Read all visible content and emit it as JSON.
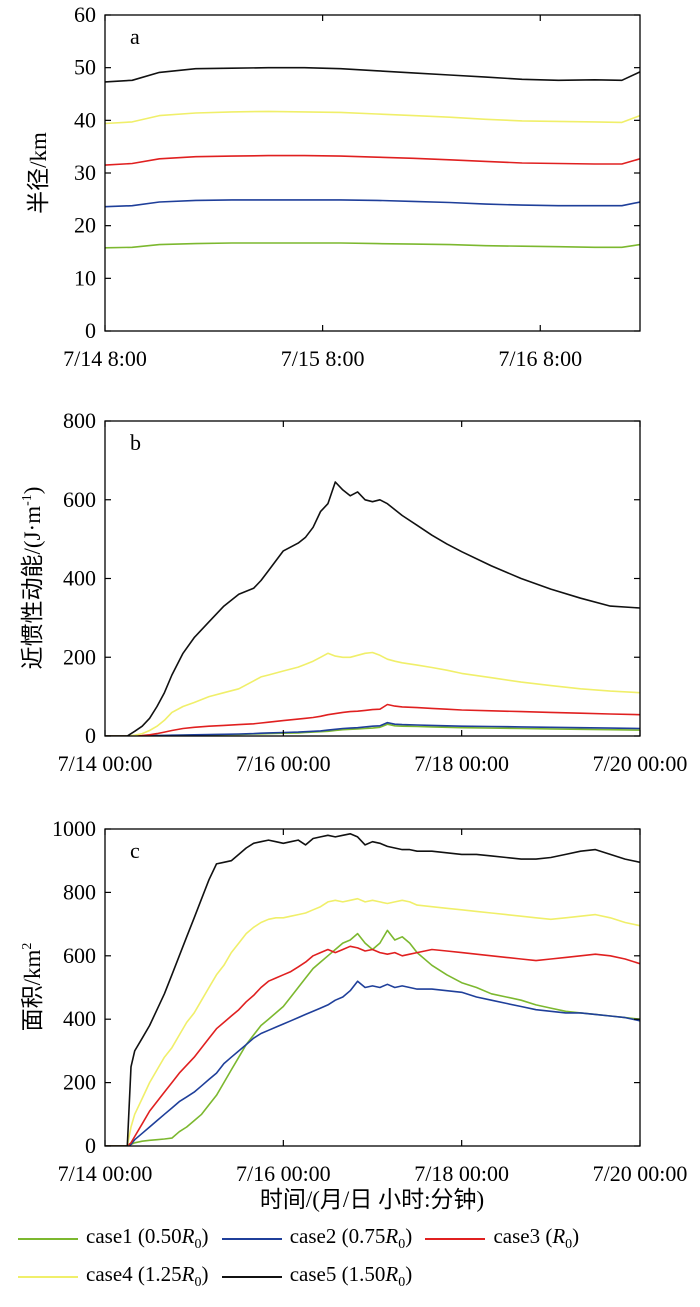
{
  "figure": {
    "xlabel": "时间/(月/日 小时:分钟)"
  },
  "legend": [
    {
      "label": "case1 (0.50R0)",
      "prefix": "case1 (0.50",
      "suffix": ")",
      "color": "#7cb82f"
    },
    {
      "label": "case2 (0.75R0)",
      "prefix": "case2 (0.75",
      "suffix": ")",
      "color": "#1f3f9a"
    },
    {
      "label": "case3 (R0)",
      "prefix": "case3 (",
      "suffix": ")",
      "color": "#e02020"
    },
    {
      "label": "case4 (1.25R0)",
      "prefix": "case4 (1.25",
      "suffix": ")",
      "color": "#f0ef6a"
    },
    {
      "label": "case5 (1.50R0)",
      "prefix": "case5 (1.50",
      "suffix": ")",
      "color": "#111111"
    }
  ],
  "chart_data": [
    {
      "panel": "a",
      "type": "line",
      "ylabel": "半径/km",
      "ylim": [
        0,
        60
      ],
      "yticks": [
        0,
        10,
        20,
        30,
        40,
        50,
        60
      ],
      "x_tick_labels": [
        "7/14 8:00",
        "7/15 8:00",
        "7/16 8:00"
      ],
      "x_tick_hours": [
        0,
        24,
        48
      ],
      "xlim_hours": [
        0,
        59
      ],
      "x": [
        0,
        3,
        6,
        10,
        14,
        18,
        22,
        26,
        30,
        34,
        38,
        42,
        46,
        50,
        54,
        57,
        59
      ],
      "series": [
        {
          "name": "case1 (0.50R0)",
          "color": "#7cb82f",
          "values": [
            15.8,
            15.9,
            16.4,
            16.6,
            16.7,
            16.7,
            16.7,
            16.7,
            16.6,
            16.5,
            16.4,
            16.2,
            16.1,
            16.0,
            15.9,
            15.9,
            16.4
          ]
        },
        {
          "name": "case2 (0.75R0)",
          "color": "#1f3f9a",
          "values": [
            23.6,
            23.8,
            24.5,
            24.8,
            24.9,
            24.9,
            24.9,
            24.9,
            24.8,
            24.6,
            24.4,
            24.1,
            23.9,
            23.8,
            23.8,
            23.8,
            24.5
          ]
        },
        {
          "name": "case3 (R0)",
          "color": "#e02020",
          "values": [
            31.5,
            31.8,
            32.7,
            33.1,
            33.2,
            33.3,
            33.3,
            33.2,
            33.0,
            32.8,
            32.5,
            32.2,
            31.9,
            31.8,
            31.7,
            31.7,
            32.7
          ]
        },
        {
          "name": "case4 (1.25R0)",
          "color": "#f0ef6a",
          "values": [
            39.4,
            39.7,
            40.9,
            41.4,
            41.6,
            41.7,
            41.6,
            41.5,
            41.2,
            40.9,
            40.6,
            40.2,
            39.9,
            39.8,
            39.7,
            39.6,
            40.9
          ]
        },
        {
          "name": "case5 (1.50R0)",
          "color": "#111111",
          "values": [
            47.3,
            47.6,
            49.1,
            49.8,
            49.9,
            50.0,
            50.0,
            49.8,
            49.4,
            49.0,
            48.6,
            48.2,
            47.8,
            47.6,
            47.7,
            47.6,
            49.2
          ]
        }
      ]
    },
    {
      "panel": "b",
      "type": "line",
      "ylabel": "近惯性动能/(J·m",
      "ylabel_sup": "-1",
      "ylabel_close": ")",
      "ylim": [
        0,
        800
      ],
      "yticks": [
        0,
        200,
        400,
        600,
        800
      ],
      "x_tick_labels": [
        "7/14 00:00",
        "7/16 00:00",
        "7/18 00:00",
        "7/20 00:00"
      ],
      "x_tick_hours": [
        0,
        48,
        96,
        144
      ],
      "xlim_hours": [
        0,
        144
      ],
      "x": [
        0,
        6,
        8,
        10,
        12,
        14,
        16,
        18,
        21,
        24,
        28,
        32,
        36,
        40,
        42,
        44,
        48,
        52,
        54,
        56,
        58,
        60,
        62,
        64,
        66,
        68,
        70,
        72,
        74,
        76,
        78,
        80,
        84,
        88,
        92,
        96,
        104,
        112,
        120,
        128,
        136,
        144
      ],
      "series": [
        {
          "name": "case1 (0.50R0)",
          "color": "#7cb82f",
          "values": [
            0,
            0,
            0,
            0.3,
            0.6,
            1,
            1.3,
            1.6,
            2,
            2.5,
            3,
            3.5,
            4,
            5,
            5.5,
            6,
            7,
            8,
            9,
            10,
            11,
            12,
            14,
            16,
            17,
            18,
            19,
            20,
            22,
            30,
            26,
            25,
            24,
            23,
            22,
            21,
            20,
            19,
            18,
            17,
            16,
            15
          ]
        },
        {
          "name": "case2 (0.75R0)",
          "color": "#1f3f9a",
          "values": [
            0,
            0,
            0,
            0.4,
            0.8,
            1.2,
            1.6,
            2,
            2.5,
            3,
            3.6,
            4.2,
            5,
            6,
            7,
            8,
            9,
            10,
            11,
            12,
            13,
            15,
            17,
            19,
            20,
            21,
            23,
            25,
            26,
            34,
            30,
            29,
            28,
            27,
            26,
            25,
            24,
            23,
            22,
            21,
            20,
            19
          ]
        },
        {
          "name": "case3 (R0)",
          "color": "#e02020",
          "values": [
            0,
            0,
            0,
            1,
            3,
            6,
            10,
            14,
            19,
            22,
            25,
            27,
            29,
            31,
            33,
            35,
            39,
            43,
            45,
            47,
            50,
            54,
            57,
            60,
            62,
            63,
            65,
            67,
            68,
            80,
            76,
            74,
            72,
            70,
            68,
            66,
            64,
            62,
            60,
            58,
            56,
            54
          ]
        },
        {
          "name": "case4 (1.25R0)",
          "color": "#f0ef6a",
          "values": [
            0,
            0,
            2,
            6,
            14,
            25,
            40,
            60,
            75,
            85,
            100,
            110,
            120,
            140,
            150,
            155,
            165,
            175,
            182,
            190,
            200,
            210,
            203,
            200,
            200,
            205,
            210,
            212,
            205,
            195,
            190,
            186,
            180,
            174,
            167,
            159,
            148,
            137,
            128,
            120,
            114,
            110
          ]
        },
        {
          "name": "case5 (1.50R0)",
          "color": "#111111",
          "values": [
            0,
            0,
            12,
            25,
            45,
            75,
            110,
            155,
            210,
            250,
            290,
            330,
            360,
            375,
            395,
            420,
            470,
            490,
            505,
            530,
            570,
            590,
            645,
            625,
            610,
            620,
            600,
            595,
            600,
            590,
            575,
            560,
            535,
            510,
            488,
            468,
            432,
            400,
            373,
            350,
            330,
            325
          ]
        }
      ]
    },
    {
      "panel": "c",
      "type": "line",
      "ylabel": "面积/km",
      "ylabel_sup": "2",
      "ylim": [
        0,
        1000
      ],
      "yticks": [
        0,
        200,
        400,
        600,
        800,
        1000
      ],
      "x_tick_labels": [
        "7/14 00:00",
        "7/16 00:00",
        "7/18 00:00",
        "7/20 00:00"
      ],
      "x_tick_hours": [
        0,
        48,
        96,
        144
      ],
      "xlim_hours": [
        0,
        144
      ],
      "x": [
        0,
        6,
        7,
        8,
        10,
        12,
        14,
        16,
        18,
        20,
        22,
        24,
        26,
        28,
        30,
        32,
        34,
        36,
        38,
        40,
        42,
        44,
        46,
        48,
        50,
        52,
        54,
        56,
        58,
        60,
        62,
        64,
        66,
        68,
        70,
        72,
        74,
        76,
        78,
        80,
        82,
        84,
        88,
        92,
        96,
        100,
        104,
        108,
        112,
        116,
        120,
        124,
        128,
        132,
        136,
        140,
        144
      ],
      "series": [
        {
          "name": "case1 (0.50R0)",
          "color": "#7cb82f",
          "values": [
            0,
            0,
            5,
            10,
            15,
            18,
            20,
            22,
            25,
            45,
            60,
            80,
            100,
            130,
            160,
            200,
            240,
            280,
            320,
            350,
            380,
            400,
            420,
            440,
            470,
            500,
            530,
            560,
            580,
            600,
            620,
            640,
            650,
            670,
            640,
            620,
            640,
            680,
            650,
            660,
            640,
            610,
            570,
            540,
            515,
            500,
            480,
            470,
            460,
            445,
            435,
            425,
            420,
            415,
            410,
            405,
            400
          ]
        },
        {
          "name": "case2 (0.75R0)",
          "color": "#1f3f9a",
          "values": [
            0,
            0,
            5,
            20,
            40,
            60,
            80,
            100,
            120,
            140,
            155,
            170,
            190,
            210,
            230,
            260,
            280,
            300,
            320,
            340,
            355,
            365,
            375,
            385,
            395,
            405,
            415,
            425,
            435,
            445,
            460,
            470,
            490,
            520,
            500,
            505,
            500,
            510,
            500,
            505,
            500,
            495,
            495,
            490,
            485,
            470,
            460,
            450,
            440,
            430,
            425,
            420,
            420,
            415,
            410,
            405,
            395
          ]
        },
        {
          "name": "case3 (R0)",
          "color": "#e02020",
          "values": [
            0,
            0,
            10,
            30,
            70,
            110,
            140,
            170,
            200,
            230,
            255,
            280,
            310,
            340,
            370,
            390,
            410,
            430,
            455,
            475,
            500,
            520,
            530,
            540,
            550,
            565,
            580,
            600,
            610,
            620,
            610,
            620,
            630,
            625,
            615,
            620,
            610,
            605,
            610,
            600,
            605,
            610,
            620,
            615,
            610,
            605,
            600,
            595,
            590,
            585,
            590,
            595,
            600,
            605,
            600,
            590,
            575
          ]
        },
        {
          "name": "case4 (1.25R0)",
          "color": "#f0ef6a",
          "values": [
            0,
            0,
            60,
            100,
            150,
            200,
            240,
            280,
            310,
            350,
            390,
            420,
            460,
            500,
            540,
            570,
            610,
            640,
            670,
            690,
            705,
            715,
            720,
            720,
            725,
            730,
            735,
            745,
            755,
            770,
            775,
            770,
            775,
            780,
            770,
            775,
            770,
            765,
            770,
            775,
            770,
            760,
            755,
            750,
            745,
            740,
            735,
            730,
            725,
            720,
            715,
            720,
            725,
            730,
            720,
            705,
            695
          ]
        },
        {
          "name": "case5 (1.50R0)",
          "color": "#111111",
          "values": [
            0,
            0,
            250,
            300,
            340,
            380,
            430,
            480,
            540,
            600,
            660,
            720,
            780,
            840,
            890,
            895,
            900,
            920,
            940,
            955,
            960,
            965,
            960,
            955,
            960,
            965,
            950,
            970,
            975,
            980,
            975,
            980,
            985,
            975,
            950,
            960,
            955,
            945,
            940,
            935,
            935,
            930,
            930,
            925,
            920,
            920,
            915,
            910,
            905,
            905,
            910,
            920,
            930,
            935,
            920,
            905,
            895
          ]
        }
      ]
    }
  ]
}
